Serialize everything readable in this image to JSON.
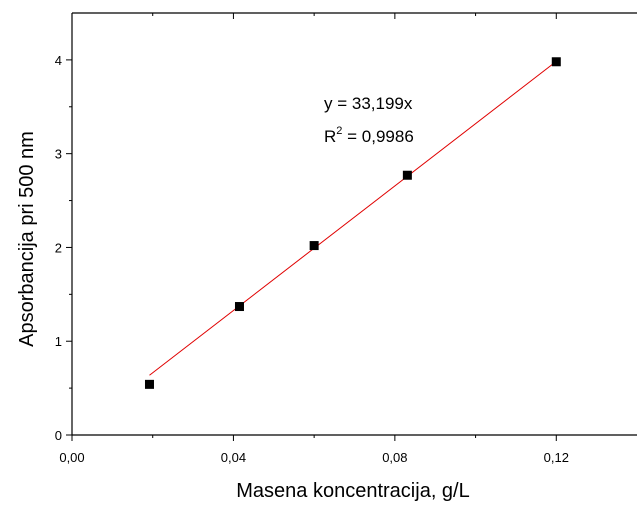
{
  "chart_data": {
    "type": "scatter",
    "xlabel": "Masena koncentracija, g/L",
    "ylabel": "Apsorbancija pri 500 nm",
    "xlim": [
      0,
      0.14
    ],
    "ylim": [
      0,
      4.5
    ],
    "x_ticks": [
      0.0,
      0.04,
      0.08,
      0.12
    ],
    "x_tick_labels": [
      "0,00",
      "0,04",
      "0,08",
      "0,12"
    ],
    "y_ticks": [
      0,
      1,
      2,
      3,
      4
    ],
    "y_tick_labels": [
      "0",
      "1",
      "2",
      "3",
      "4"
    ],
    "grid": false,
    "legend": "none",
    "series": [
      {
        "marker": "square",
        "color": "#000000",
        "x": [
          0.0192,
          0.0415,
          0.06,
          0.0831,
          0.12
        ],
        "y": [
          0.54,
          1.37,
          2.02,
          2.77,
          3.98
        ]
      }
    ],
    "fit": {
      "type": "linear",
      "slope": 33.199,
      "intercept": 0,
      "x_range": [
        0.0192,
        0.12
      ],
      "color": "#e00000"
    },
    "annotations": {
      "equation": "y = 33,199x",
      "r2_prefix": "R",
      "r2_exponent": "2",
      "r2_value": " = 0,9986"
    }
  }
}
